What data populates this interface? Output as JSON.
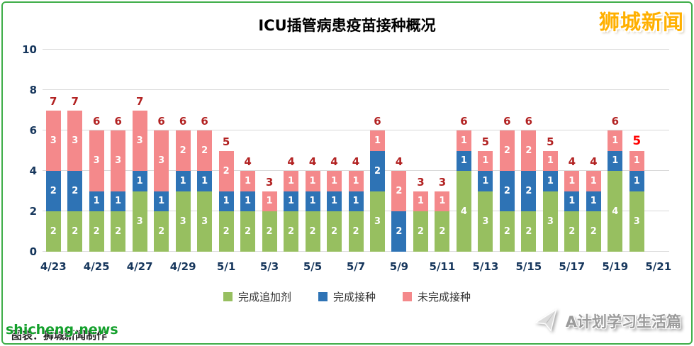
{
  "brand": {
    "text": "狮城新闻"
  },
  "chart_data": {
    "type": "bar",
    "stacked": true,
    "title": "ICU插管病患疫苗接种概况",
    "ylim": [
      0,
      10
    ],
    "yticks": [
      0,
      2,
      4,
      6,
      8,
      10
    ],
    "grid": true,
    "legend_position": "bottom",
    "slot_count": 29,
    "categories": [
      "4/23",
      "4/24",
      "4/25",
      "4/26",
      "4/27",
      "4/28",
      "4/29",
      "4/30",
      "5/1",
      "5/2",
      "5/3",
      "5/4",
      "5/5",
      "5/6",
      "5/7",
      "5/8",
      "5/9",
      "5/10",
      "5/11",
      "5/12",
      "5/13",
      "5/14",
      "5/15",
      "5/16",
      "5/17",
      "5/18",
      "5/19",
      "5/20"
    ],
    "x_tick_labels": [
      "4/23",
      "4/25",
      "4/27",
      "4/29",
      "5/1",
      "5/3",
      "5/5",
      "5/7",
      "5/9",
      "5/11",
      "5/13",
      "5/15",
      "5/17",
      "5/19",
      "5/21"
    ],
    "series": [
      {
        "name": "完成追加剂",
        "color": "#97bf60",
        "values": [
          2,
          2,
          2,
          2,
          3,
          2,
          3,
          3,
          2,
          2,
          2,
          2,
          2,
          2,
          2,
          3,
          0,
          2,
          2,
          4,
          3,
          2,
          2,
          3,
          2,
          2,
          4,
          3
        ]
      },
      {
        "name": "完成接种",
        "color": "#2e73b5",
        "values": [
          2,
          2,
          1,
          1,
          1,
          1,
          1,
          1,
          1,
          1,
          0,
          1,
          1,
          1,
          1,
          2,
          2,
          0,
          0,
          1,
          1,
          2,
          2,
          1,
          1,
          1,
          1,
          1
        ]
      },
      {
        "name": "未完成接种",
        "color": "#f4898b",
        "values": [
          3,
          3,
          3,
          3,
          3,
          3,
          2,
          2,
          2,
          1,
          1,
          1,
          1,
          1,
          1,
          1,
          2,
          1,
          1,
          1,
          1,
          2,
          2,
          1,
          1,
          1,
          1,
          1
        ]
      }
    ],
    "totals": [
      7,
      7,
      6,
      6,
      7,
      6,
      6,
      6,
      5,
      4,
      3,
      4,
      4,
      4,
      4,
      6,
      4,
      3,
      3,
      6,
      5,
      6,
      6,
      5,
      4,
      4,
      6,
      5
    ],
    "highlight_last_total": true,
    "total_label_color": "#b22222",
    "last_total_color": "#ff0000"
  },
  "footer": {
    "caption": "图表：狮城新闻制作",
    "watermark_left": "shicheng.news",
    "watermark_right": "A计划学习生活篇"
  },
  "colors": {
    "frame_green": "#3fae49",
    "brand_gold": "#ffb000",
    "watermark_green": "#14a02c",
    "axis_text": "#16365c"
  }
}
